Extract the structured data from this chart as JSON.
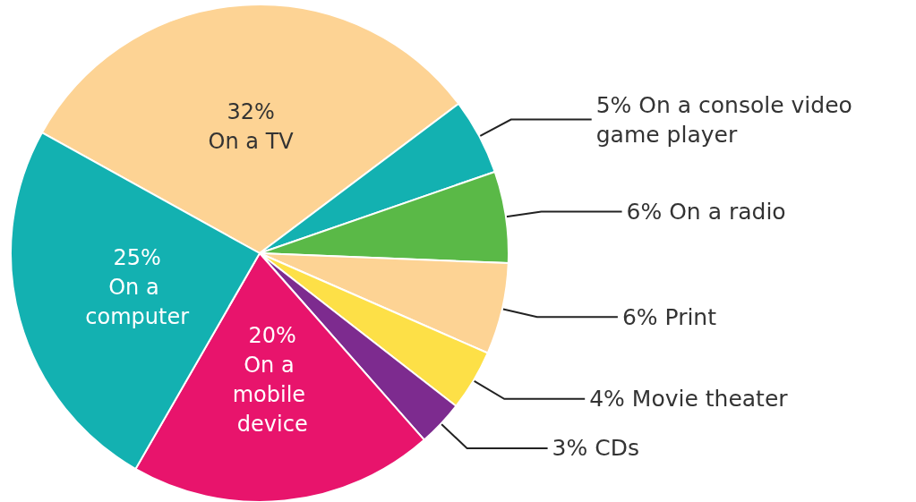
{
  "chart_data": {
    "type": "pie",
    "categories": [
      "On a TV",
      "On a console video game player",
      "On a radio",
      "Print",
      "Movie theater",
      "CDs",
      "On a mobile device",
      "On a computer"
    ],
    "values": [
      32,
      5,
      6,
      6,
      4,
      3,
      20,
      25
    ],
    "value_labels": [
      "32%",
      "5%",
      "6%",
      "6%",
      "4%",
      "3%",
      "20%",
      "25%"
    ],
    "colors": [
      "#fdd394",
      "#13b1b1",
      "#5ab947",
      "#fdd394",
      "#fde047",
      "#7d2b8f",
      "#e8146c",
      "#13b1b1"
    ],
    "legend": false
  }
}
